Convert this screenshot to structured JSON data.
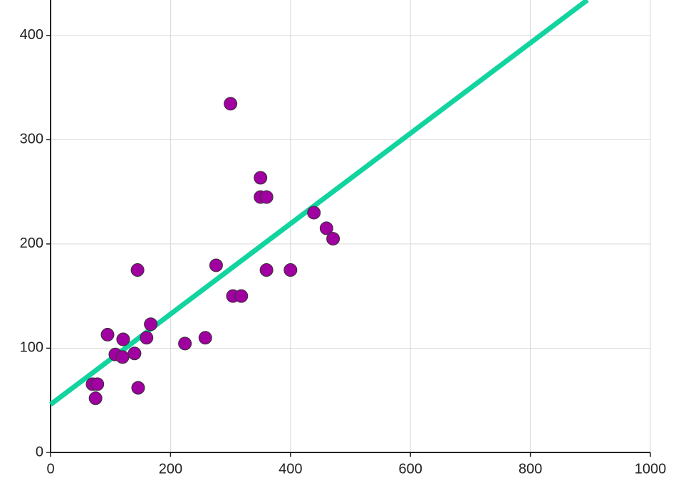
{
  "chart_data": {
    "type": "scatter",
    "xlim": [
      0,
      1000
    ],
    "ylim": [
      0,
      434
    ],
    "xticks": [
      0,
      200,
      400,
      600,
      800,
      1000
    ],
    "yticks": [
      0,
      100,
      200,
      300,
      400
    ],
    "grid": true,
    "points": {
      "color": "#a0009f",
      "x": [
        70,
        78,
        75,
        95,
        108,
        121,
        120,
        140,
        145,
        146,
        160,
        167,
        224,
        258,
        276,
        300,
        304,
        318,
        350,
        350,
        360,
        360,
        400,
        439,
        460,
        471
      ],
      "values": [
        65.5,
        65.5,
        52,
        113,
        94,
        108.5,
        91.5,
        95,
        175,
        62,
        110,
        123,
        104.5,
        110,
        179.5,
        334.5,
        150,
        150,
        263.5,
        245,
        245,
        175,
        175,
        230,
        215,
        205
      ]
    },
    "trend": {
      "color": "#11d49e",
      "x": [
        0,
        895
      ],
      "values": [
        46,
        434
      ]
    }
  }
}
